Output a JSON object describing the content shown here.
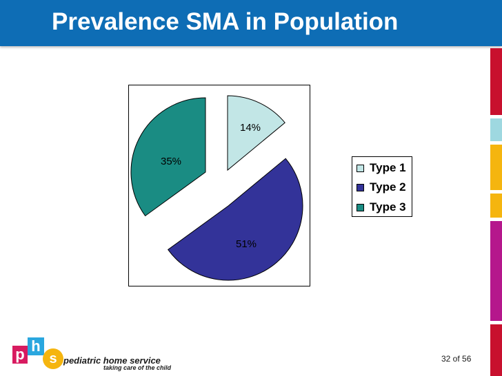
{
  "slide": {
    "title": "Prevalence SMA in Population",
    "page_number": "32 of 56"
  },
  "branding": {
    "logo_letters": [
      "p",
      "h",
      "s"
    ],
    "company_name": "pediatric home service",
    "tagline": "taking care of the child",
    "colors": {
      "p": "#d81b60",
      "h": "#2aa7df",
      "s": "#f5b50f"
    }
  },
  "theme": {
    "title_bar_color": "#0e6db5",
    "side_strip_colors": [
      "#c8102e",
      "#9ed8e0",
      "#f5b50f",
      "#f5b50f",
      "#b5178c",
      "#c8102e"
    ]
  },
  "chart_data": {
    "type": "pie",
    "style": "exploded",
    "title": "",
    "categories": [
      "Type 1",
      "Type 2",
      "Type 3"
    ],
    "values": [
      14,
      51,
      35
    ],
    "labels": [
      "14%",
      "51%",
      "35%"
    ],
    "colors": [
      "#c2e6e6",
      "#333399",
      "#1a8c83"
    ],
    "legend_position": "right"
  }
}
